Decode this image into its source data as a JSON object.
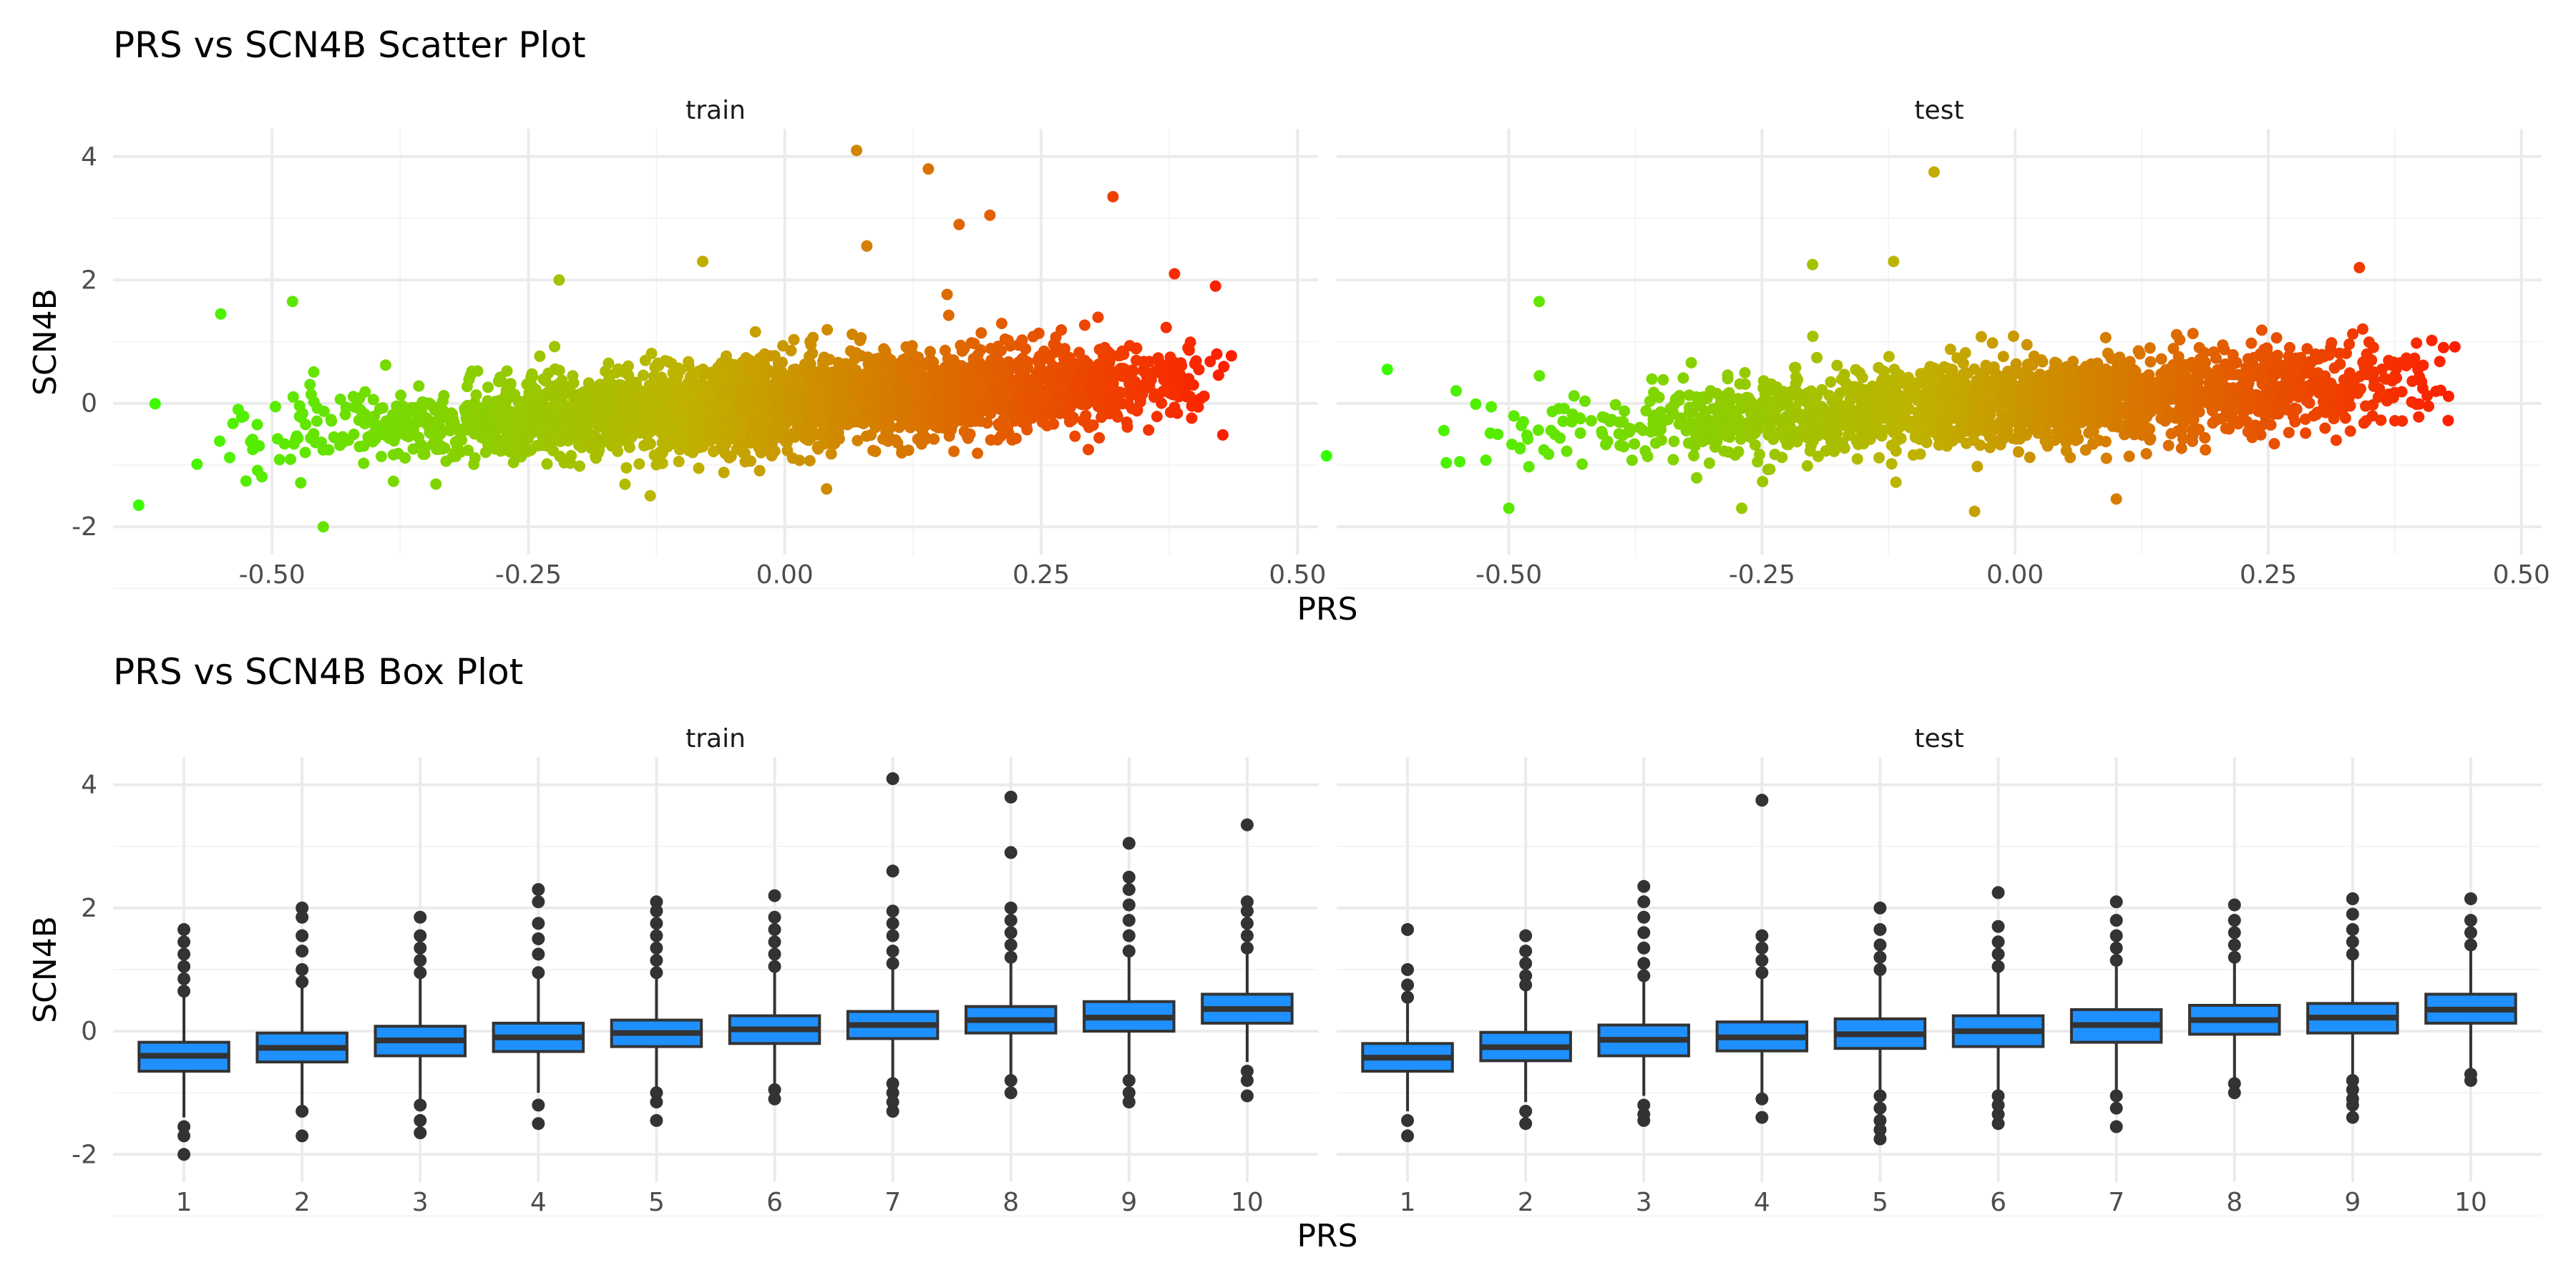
{
  "titles": {
    "scatter": "PRS vs SCN4B Scatter Plot",
    "box": "PRS vs SCN4B Box Plot"
  },
  "colors": {
    "gradient_low": "#33ff00",
    "gradient_mid": "#bfb300",
    "gradient_high": "#ff1a00",
    "box_fill": "#1e90ff",
    "box_line": "#333333",
    "grid_major": "#ebebeb",
    "grid_minor": "#f4f4f4",
    "text": "#4d4d4d"
  },
  "chart_data": [
    {
      "type": "scatter",
      "title": "PRS vs SCN4B Scatter Plot",
      "xlabel": "PRS",
      "ylabel": "SCN4B",
      "facets": [
        "train",
        "test"
      ],
      "xlim": [
        -0.65,
        0.45
      ],
      "ylim": [
        -2,
        4.1
      ],
      "x_ticks": [
        -0.5,
        -0.25,
        0.0,
        0.25,
        0.5
      ],
      "x_tick_labels": [
        "-0.50",
        "-0.25",
        "0.00",
        "0.25",
        "0.50"
      ],
      "y_ticks": [
        -2,
        0,
        2,
        4
      ],
      "y_tick_labels": [
        "-2",
        "0",
        "2",
        "4"
      ],
      "color_by": "PRS",
      "trend": {
        "intercept": 0.0,
        "slope": 0.95
      },
      "point_density_note_hidden": true,
      "series": [
        {
          "name": "train",
          "x_range": [
            -0.64,
            0.44
          ],
          "notable_points": [
            {
              "x": 0.07,
              "y": 4.1
            },
            {
              "x": 0.14,
              "y": 3.8
            },
            {
              "x": 0.32,
              "y": 3.35
            },
            {
              "x": 0.2,
              "y": 3.05
            },
            {
              "x": 0.17,
              "y": 2.9
            },
            {
              "x": 0.08,
              "y": 2.55
            },
            {
              "x": -0.55,
              "y": 1.45
            },
            {
              "x": -0.48,
              "y": 1.65
            },
            {
              "x": -0.45,
              "y": -2.0
            },
            {
              "x": -0.63,
              "y": -1.65
            },
            {
              "x": -0.22,
              "y": 2.0
            },
            {
              "x": -0.08,
              "y": 2.3
            },
            {
              "x": 0.38,
              "y": 2.1
            },
            {
              "x": 0.42,
              "y": 1.9
            }
          ]
        },
        {
          "name": "test",
          "x_range": [
            -0.63,
            0.45
          ],
          "notable_points": [
            {
              "x": -0.08,
              "y": 3.75
            },
            {
              "x": -0.47,
              "y": 1.65
            },
            {
              "x": -0.62,
              "y": 0.55
            },
            {
              "x": -0.2,
              "y": 2.25
            },
            {
              "x": -0.12,
              "y": 2.3
            },
            {
              "x": 0.34,
              "y": 2.2
            },
            {
              "x": -0.04,
              "y": -1.75
            },
            {
              "x": 0.1,
              "y": -1.55
            },
            {
              "x": -0.5,
              "y": -1.7
            },
            {
              "x": -0.27,
              "y": -1.7
            },
            {
              "x": -0.68,
              "y": -0.85
            }
          ]
        }
      ]
    },
    {
      "type": "box",
      "title": "PRS vs SCN4B Box Plot",
      "xlabel": "PRS",
      "ylabel": "SCN4B",
      "facets": [
        "train",
        "test"
      ],
      "categories": [
        "1",
        "2",
        "3",
        "4",
        "5",
        "6",
        "7",
        "8",
        "9",
        "10"
      ],
      "ylim": [
        -2,
        4.1
      ],
      "y_ticks": [
        -2,
        0,
        2,
        4
      ],
      "y_tick_labels": [
        "-2",
        "0",
        "2",
        "4"
      ],
      "series": [
        {
          "name": "train",
          "boxes": [
            {
              "q1": -0.65,
              "median": -0.4,
              "q3": -0.18,
              "lo": -1.4,
              "hi": 0.55,
              "out_lo": [
                -1.55,
                -1.7,
                -2.0
              ],
              "out_hi": [
                0.65,
                0.85,
                1.05,
                1.25,
                1.45,
                1.65
              ]
            },
            {
              "q1": -0.5,
              "median": -0.27,
              "q3": -0.03,
              "lo": -1.2,
              "hi": 0.7,
              "out_lo": [
                -1.3,
                -1.7
              ],
              "out_hi": [
                0.8,
                1.0,
                1.3,
                1.55,
                1.85,
                2.0
              ]
            },
            {
              "q1": -0.4,
              "median": -0.15,
              "q3": 0.08,
              "lo": -1.1,
              "hi": 0.85,
              "out_lo": [
                -1.2,
                -1.45,
                -1.65
              ],
              "out_hi": [
                0.95,
                1.15,
                1.35,
                1.55,
                1.85
              ]
            },
            {
              "q1": -0.33,
              "median": -0.1,
              "q3": 0.13,
              "lo": -1.0,
              "hi": 0.85,
              "out_lo": [
                -1.2,
                -1.5
              ],
              "out_hi": [
                0.95,
                1.25,
                1.5,
                1.75,
                2.1,
                2.3
              ]
            },
            {
              "q1": -0.25,
              "median": -0.03,
              "q3": 0.18,
              "lo": -0.9,
              "hi": 0.85,
              "out_lo": [
                -1.0,
                -1.15,
                -1.45
              ],
              "out_hi": [
                0.95,
                1.15,
                1.35,
                1.55,
                1.75,
                1.95,
                2.1
              ]
            },
            {
              "q1": -0.2,
              "median": 0.03,
              "q3": 0.25,
              "lo": -0.85,
              "hi": 0.95,
              "out_lo": [
                -0.95,
                -1.1
              ],
              "out_hi": [
                1.05,
                1.25,
                1.45,
                1.65,
                1.85,
                2.2
              ]
            },
            {
              "q1": -0.12,
              "median": 0.1,
              "q3": 0.32,
              "lo": -0.8,
              "hi": 1.0,
              "out_lo": [
                -0.85,
                -1.0,
                -1.15,
                -1.3
              ],
              "out_hi": [
                1.1,
                1.3,
                1.55,
                1.75,
                1.95,
                2.6,
                4.1
              ]
            },
            {
              "q1": -0.03,
              "median": 0.18,
              "q3": 0.4,
              "lo": -0.7,
              "hi": 1.1,
              "out_lo": [
                -0.8,
                -1.0
              ],
              "out_hi": [
                1.2,
                1.4,
                1.6,
                1.8,
                2.0,
                2.9,
                3.8
              ]
            },
            {
              "q1": 0.0,
              "median": 0.22,
              "q3": 0.48,
              "lo": -0.7,
              "hi": 1.2,
              "out_lo": [
                -0.8,
                -1.0,
                -1.15
              ],
              "out_hi": [
                1.3,
                1.55,
                1.8,
                2.05,
                2.3,
                2.5,
                3.05
              ]
            },
            {
              "q1": 0.13,
              "median": 0.36,
              "q3": 0.6,
              "lo": -0.5,
              "hi": 1.25,
              "out_lo": [
                -0.65,
                -0.8,
                -1.05
              ],
              "out_hi": [
                1.35,
                1.55,
                1.75,
                1.95,
                2.1,
                3.35
              ]
            }
          ]
        },
        {
          "name": "test",
          "boxes": [
            {
              "q1": -0.65,
              "median": -0.43,
              "q3": -0.2,
              "lo": -1.3,
              "hi": 0.45,
              "out_lo": [
                -1.45,
                -1.7
              ],
              "out_hi": [
                0.55,
                0.75,
                1.0,
                1.65
              ]
            },
            {
              "q1": -0.48,
              "median": -0.26,
              "q3": -0.02,
              "lo": -1.15,
              "hi": 0.65,
              "out_lo": [
                -1.3,
                -1.5
              ],
              "out_hi": [
                0.75,
                0.9,
                1.1,
                1.3,
                1.55
              ]
            },
            {
              "q1": -0.4,
              "median": -0.14,
              "q3": 0.1,
              "lo": -1.05,
              "hi": 0.8,
              "out_lo": [
                -1.2,
                -1.35,
                -1.45
              ],
              "out_hi": [
                0.9,
                1.1,
                1.35,
                1.6,
                1.85,
                2.1,
                2.35
              ]
            },
            {
              "q1": -0.32,
              "median": -0.1,
              "q3": 0.15,
              "lo": -1.0,
              "hi": 0.85,
              "out_lo": [
                -1.1,
                -1.4
              ],
              "out_hi": [
                0.95,
                1.15,
                1.35,
                1.55,
                3.75
              ]
            },
            {
              "q1": -0.28,
              "median": -0.05,
              "q3": 0.2,
              "lo": -0.95,
              "hi": 0.9,
              "out_lo": [
                -1.05,
                -1.25,
                -1.45,
                -1.6,
                -1.75
              ],
              "out_hi": [
                1.0,
                1.2,
                1.4,
                1.65,
                2.0
              ]
            },
            {
              "q1": -0.25,
              "median": 0.0,
              "q3": 0.25,
              "lo": -0.95,
              "hi": 0.95,
              "out_lo": [
                -1.05,
                -1.2,
                -1.35,
                -1.5
              ],
              "out_hi": [
                1.05,
                1.25,
                1.45,
                1.7,
                2.25
              ]
            },
            {
              "q1": -0.18,
              "median": 0.1,
              "q3": 0.35,
              "lo": -0.95,
              "hi": 1.05,
              "out_lo": [
                -1.05,
                -1.25,
                -1.55
              ],
              "out_hi": [
                1.15,
                1.35,
                1.55,
                1.8,
                2.1
              ]
            },
            {
              "q1": -0.05,
              "median": 0.18,
              "q3": 0.42,
              "lo": -0.75,
              "hi": 1.1,
              "out_lo": [
                -0.85,
                -1.0
              ],
              "out_hi": [
                1.2,
                1.4,
                1.6,
                1.8,
                2.05
              ]
            },
            {
              "q1": -0.03,
              "median": 0.22,
              "q3": 0.45,
              "lo": -0.7,
              "hi": 1.15,
              "out_lo": [
                -0.8,
                -0.95,
                -1.1,
                -1.2,
                -1.4
              ],
              "out_hi": [
                1.25,
                1.45,
                1.65,
                1.9,
                2.15
              ]
            },
            {
              "q1": 0.13,
              "median": 0.35,
              "q3": 0.6,
              "lo": -0.6,
              "hi": 1.3,
              "out_lo": [
                -0.7,
                -0.8
              ],
              "out_hi": [
                1.4,
                1.6,
                1.8,
                2.15
              ]
            }
          ]
        }
      ]
    }
  ]
}
